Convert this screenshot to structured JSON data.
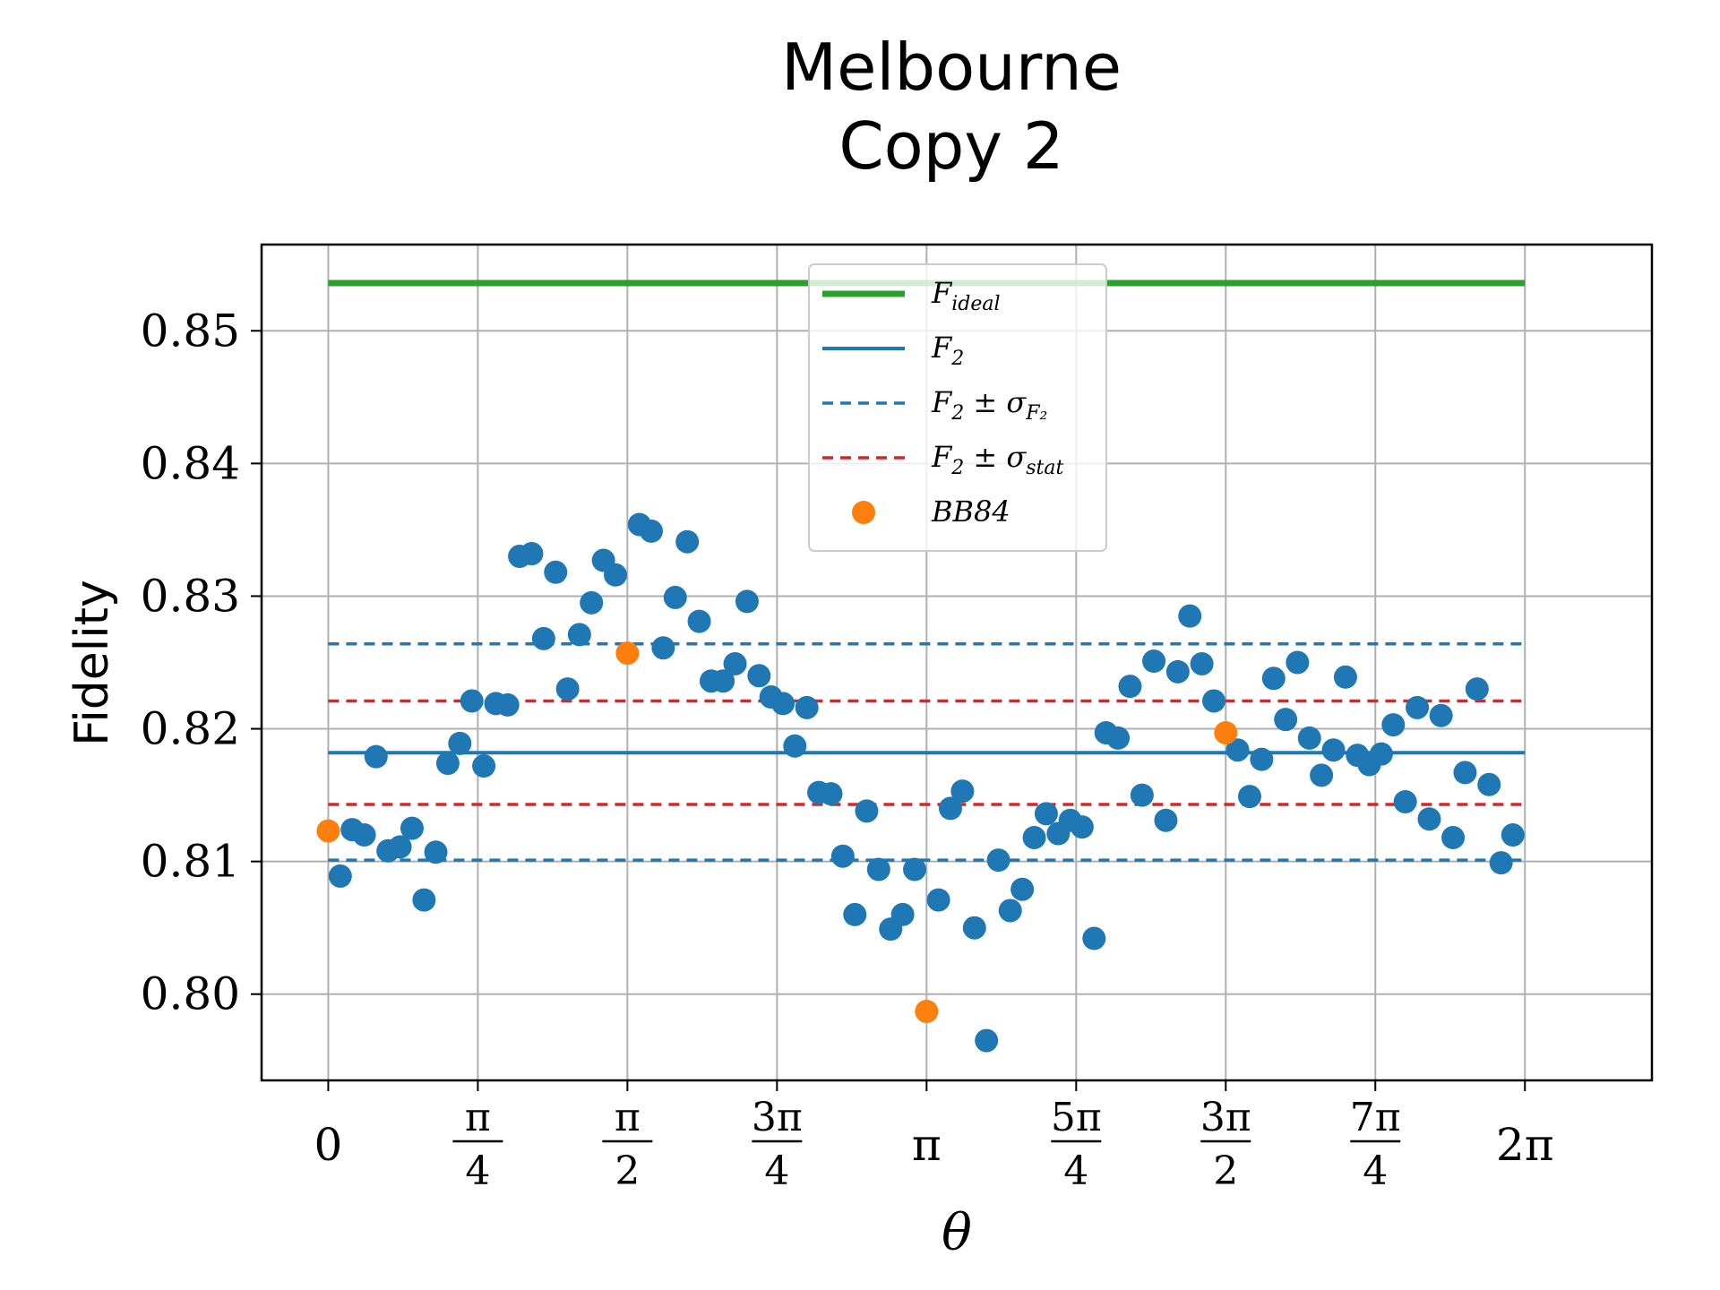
{
  "chart_data": {
    "type": "scatter",
    "title": [
      "Melbourne",
      "Copy 2"
    ],
    "xlabel": "θ",
    "ylabel": "Fidelity",
    "xlim": [
      -0.35,
      6.95
    ],
    "ylim": [
      0.7935,
      0.8565
    ],
    "grid": true,
    "legend_position": "upper-center",
    "colors": {
      "ideal": "#2ca02c",
      "f2": "#1f77b4",
      "stat": "#d62728",
      "bb84": "#ff7f0e"
    },
    "xticks": [
      {
        "value": 0,
        "label": "0"
      },
      {
        "value": 0.7854,
        "num": "π",
        "den": "4"
      },
      {
        "value": 1.5708,
        "num": "π",
        "den": "2"
      },
      {
        "value": 2.3562,
        "num": "3π",
        "den": "4"
      },
      {
        "value": 3.1416,
        "label": "π"
      },
      {
        "value": 3.927,
        "num": "5π",
        "den": "4"
      },
      {
        "value": 4.7124,
        "num": "3π",
        "den": "2"
      },
      {
        "value": 5.4978,
        "num": "7π",
        "den": "4"
      },
      {
        "value": 6.2832,
        "label": "2π"
      }
    ],
    "yticks": [
      {
        "value": 0.8,
        "label": "0.80"
      },
      {
        "value": 0.81,
        "label": "0.81"
      },
      {
        "value": 0.82,
        "label": "0.82"
      },
      {
        "value": 0.83,
        "label": "0.83"
      },
      {
        "value": 0.84,
        "label": "0.84"
      },
      {
        "value": 0.85,
        "label": "0.85"
      }
    ],
    "lines": [
      {
        "name": "F_ideal",
        "y": 0.8536,
        "style": "solid",
        "color": "#2ca02c",
        "width": 7
      },
      {
        "name": "F_2",
        "y": 0.8182,
        "style": "solid",
        "color": "#1f77b4",
        "width": 4
      },
      {
        "name": "F_2 ± σ_F2 (upper)",
        "y": 0.8264,
        "style": "dashed",
        "color": "#1f77b4",
        "width": 3.5
      },
      {
        "name": "F_2 ± σ_F2 (lower)",
        "y": 0.8101,
        "style": "dashed",
        "color": "#1f77b4",
        "width": 3.5
      },
      {
        "name": "F_2 ± σ_stat (upper)",
        "y": 0.8221,
        "style": "dashed",
        "color": "#d62728",
        "width": 3.5
      },
      {
        "name": "F_2 ± σ_stat (lower)",
        "y": 0.8143,
        "style": "dashed",
        "color": "#d62728",
        "width": 3.5
      }
    ],
    "line_x_range": [
      0,
      6.2832
    ],
    "series": [
      {
        "name": "Fidelity",
        "color": "#1f77b4",
        "points": [
          [
            0.063,
            0.8089
          ],
          [
            0.126,
            0.8124
          ],
          [
            0.189,
            0.812
          ],
          [
            0.251,
            0.8179
          ],
          [
            0.314,
            0.8108
          ],
          [
            0.377,
            0.8111
          ],
          [
            0.44,
            0.8125
          ],
          [
            0.503,
            0.8071
          ],
          [
            0.565,
            0.8107
          ],
          [
            0.628,
            0.8174
          ],
          [
            0.691,
            0.8189
          ],
          [
            0.754,
            0.8221
          ],
          [
            0.817,
            0.8172
          ],
          [
            0.88,
            0.8219
          ],
          [
            0.942,
            0.8218
          ],
          [
            1.005,
            0.833
          ],
          [
            1.068,
            0.8332
          ],
          [
            1.131,
            0.8268
          ],
          [
            1.194,
            0.8318
          ],
          [
            1.257,
            0.823
          ],
          [
            1.319,
            0.8271
          ],
          [
            1.382,
            0.8295
          ],
          [
            1.445,
            0.8327
          ],
          [
            1.508,
            0.8316
          ],
          [
            1.634,
            0.8354
          ],
          [
            1.696,
            0.8349
          ],
          [
            1.759,
            0.8261
          ],
          [
            1.822,
            0.8299
          ],
          [
            1.885,
            0.8341
          ],
          [
            1.948,
            0.8281
          ],
          [
            2.011,
            0.8236
          ],
          [
            2.073,
            0.8236
          ],
          [
            2.136,
            0.8249
          ],
          [
            2.199,
            0.8296
          ],
          [
            2.262,
            0.824
          ],
          [
            2.325,
            0.8224
          ],
          [
            2.388,
            0.8219
          ],
          [
            2.45,
            0.8187
          ],
          [
            2.513,
            0.8216
          ],
          [
            2.576,
            0.8152
          ],
          [
            2.639,
            0.8151
          ],
          [
            2.702,
            0.8104
          ],
          [
            2.765,
            0.806
          ],
          [
            2.827,
            0.8138
          ],
          [
            2.89,
            0.8094
          ],
          [
            2.953,
            0.8049
          ],
          [
            3.016,
            0.806
          ],
          [
            3.079,
            0.8094
          ],
          [
            3.204,
            0.8071
          ],
          [
            3.267,
            0.814
          ],
          [
            3.33,
            0.8153
          ],
          [
            3.393,
            0.805
          ],
          [
            3.456,
            0.7965
          ],
          [
            3.519,
            0.8101
          ],
          [
            3.581,
            0.8063
          ],
          [
            3.644,
            0.8079
          ],
          [
            3.707,
            0.8118
          ],
          [
            3.77,
            0.8136
          ],
          [
            3.833,
            0.8121
          ],
          [
            3.896,
            0.8131
          ],
          [
            3.958,
            0.8126
          ],
          [
            4.021,
            0.8042
          ],
          [
            4.084,
            0.8197
          ],
          [
            4.147,
            0.8193
          ],
          [
            4.21,
            0.8232
          ],
          [
            4.273,
            0.815
          ],
          [
            4.335,
            0.8251
          ],
          [
            4.398,
            0.8131
          ],
          [
            4.461,
            0.8243
          ],
          [
            4.524,
            0.8285
          ],
          [
            4.587,
            0.8249
          ],
          [
            4.65,
            0.8221
          ],
          [
            4.775,
            0.8184
          ],
          [
            4.838,
            0.8149
          ],
          [
            4.901,
            0.8177
          ],
          [
            4.964,
            0.8238
          ],
          [
            5.027,
            0.8207
          ],
          [
            5.089,
            0.825
          ],
          [
            5.152,
            0.8193
          ],
          [
            5.215,
            0.8165
          ],
          [
            5.278,
            0.8184
          ],
          [
            5.341,
            0.8239
          ],
          [
            5.404,
            0.818
          ],
          [
            5.466,
            0.8173
          ],
          [
            5.529,
            0.8181
          ],
          [
            5.592,
            0.8203
          ],
          [
            5.655,
            0.8145
          ],
          [
            5.718,
            0.8216
          ],
          [
            5.781,
            0.8132
          ],
          [
            5.843,
            0.821
          ],
          [
            5.906,
            0.8118
          ],
          [
            5.969,
            0.8167
          ],
          [
            6.032,
            0.823
          ],
          [
            6.095,
            0.8158
          ],
          [
            6.158,
            0.8099
          ],
          [
            6.22,
            0.812
          ]
        ]
      },
      {
        "name": "BB84",
        "color": "#ff7f0e",
        "points": [
          [
            0,
            0.8123
          ],
          [
            1.5708,
            0.8257
          ],
          [
            3.1416,
            0.7987
          ],
          [
            4.7124,
            0.8197
          ]
        ]
      }
    ],
    "legend": [
      {
        "kind": "line",
        "color": "#2ca02c",
        "dash": "",
        "width": 7,
        "label": "F",
        "sub": "ideal"
      },
      {
        "kind": "line",
        "color": "#1f77b4",
        "dash": "",
        "width": 4,
        "label": "F",
        "sub": "2"
      },
      {
        "kind": "line",
        "color": "#1f77b4",
        "dash": "12,8",
        "width": 3.5,
        "label": "F",
        "sub": "2",
        "tail": " ± σ",
        "tail_sub": "F₂"
      },
      {
        "kind": "line",
        "color": "#d62728",
        "dash": "12,8",
        "width": 3.5,
        "label": "F",
        "sub": "2",
        "tail": " ± σ",
        "tail_sub": "stat"
      },
      {
        "kind": "marker",
        "color": "#ff7f0e",
        "label": "BB84"
      }
    ]
  }
}
